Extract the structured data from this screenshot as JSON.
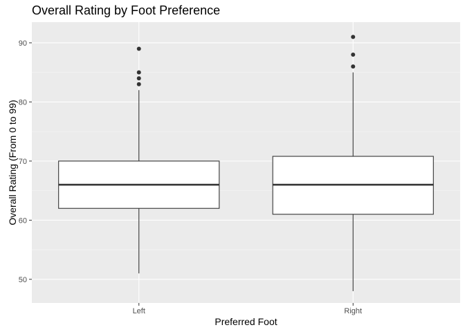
{
  "chart_data": {
    "type": "box",
    "title": "Overall Rating by Foot Preference",
    "xlabel": "Preferred Foot",
    "ylabel": "Overall Rating (From 0 to 99)",
    "categories": [
      "Left",
      "Right"
    ],
    "ylim": [
      46,
      93.5
    ],
    "yticks": [
      50,
      60,
      70,
      80,
      90
    ],
    "grid": true,
    "boxes": [
      {
        "category": "Left",
        "whisker_low": 51,
        "q1": 62,
        "median": 66,
        "q3": 70,
        "whisker_high": 82,
        "outliers": [
          83,
          84,
          85,
          89
        ]
      },
      {
        "category": "Right",
        "whisker_low": 48,
        "q1": 61,
        "median": 66,
        "q3": 70.8,
        "whisker_high": 85,
        "outliers": [
          86,
          88,
          91
        ]
      }
    ],
    "colors": {
      "panel": "#ebebeb",
      "grid_major": "#ffffff",
      "box_fill": "#ffffff",
      "box_line": "#333333",
      "outlier": "#333333"
    }
  }
}
